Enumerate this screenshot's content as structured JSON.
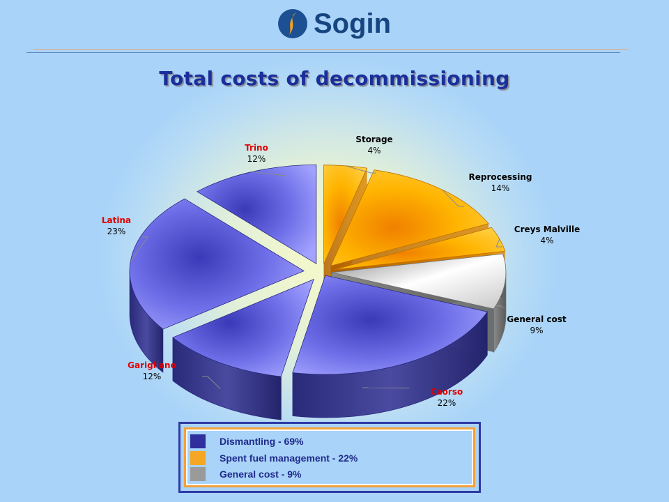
{
  "header": {
    "logo_text": "Sogin",
    "logo_mark": "sogin-flame-logo"
  },
  "chart_data": {
    "type": "pie",
    "title": "Total costs of decommissioning",
    "unit": "%",
    "three_d": true,
    "exploded": true,
    "slices": [
      {
        "label": "Storage",
        "value": 4,
        "pct": "4%",
        "group": "Spent fuel management",
        "label_color": "#000000"
      },
      {
        "label": "Reprocessing",
        "value": 14,
        "pct": "14%",
        "group": "Spent fuel management",
        "label_color": "#000000"
      },
      {
        "label": "Creys Malville",
        "value": 4,
        "pct": "4%",
        "group": "Spent fuel management",
        "label_color": "#000000"
      },
      {
        "label": "General cost",
        "value": 9,
        "pct": "9%",
        "group": "General cost",
        "label_color": "#000000"
      },
      {
        "label": "Caorso",
        "value": 22,
        "pct": "22%",
        "group": "Dismantling",
        "label_color": "#e00000"
      },
      {
        "label": "Garigliano",
        "value": 12,
        "pct": "12%",
        "group": "Dismantling",
        "label_color": "#e00000"
      },
      {
        "label": "Latina",
        "value": 23,
        "pct": "23%",
        "group": "Dismantling",
        "label_color": "#e00000"
      },
      {
        "label": "Trino",
        "value": 12,
        "pct": "12%",
        "group": "Dismantling",
        "label_color": "#e00000"
      }
    ],
    "legend": {
      "placement": "bottom",
      "items": [
        {
          "label": "Dismantling - 69%",
          "color": "#2f2f9e"
        },
        {
          "label": "Spent fuel management - 22%",
          "color": "#f5a623"
        },
        {
          "label": "General cost - 9%",
          "color": "#9a9a9a"
        }
      ]
    },
    "group_colors": {
      "Dismantling": "#8a8af0",
      "Spent fuel management": "#ffb400",
      "General cost": "#d8d8d8"
    }
  }
}
